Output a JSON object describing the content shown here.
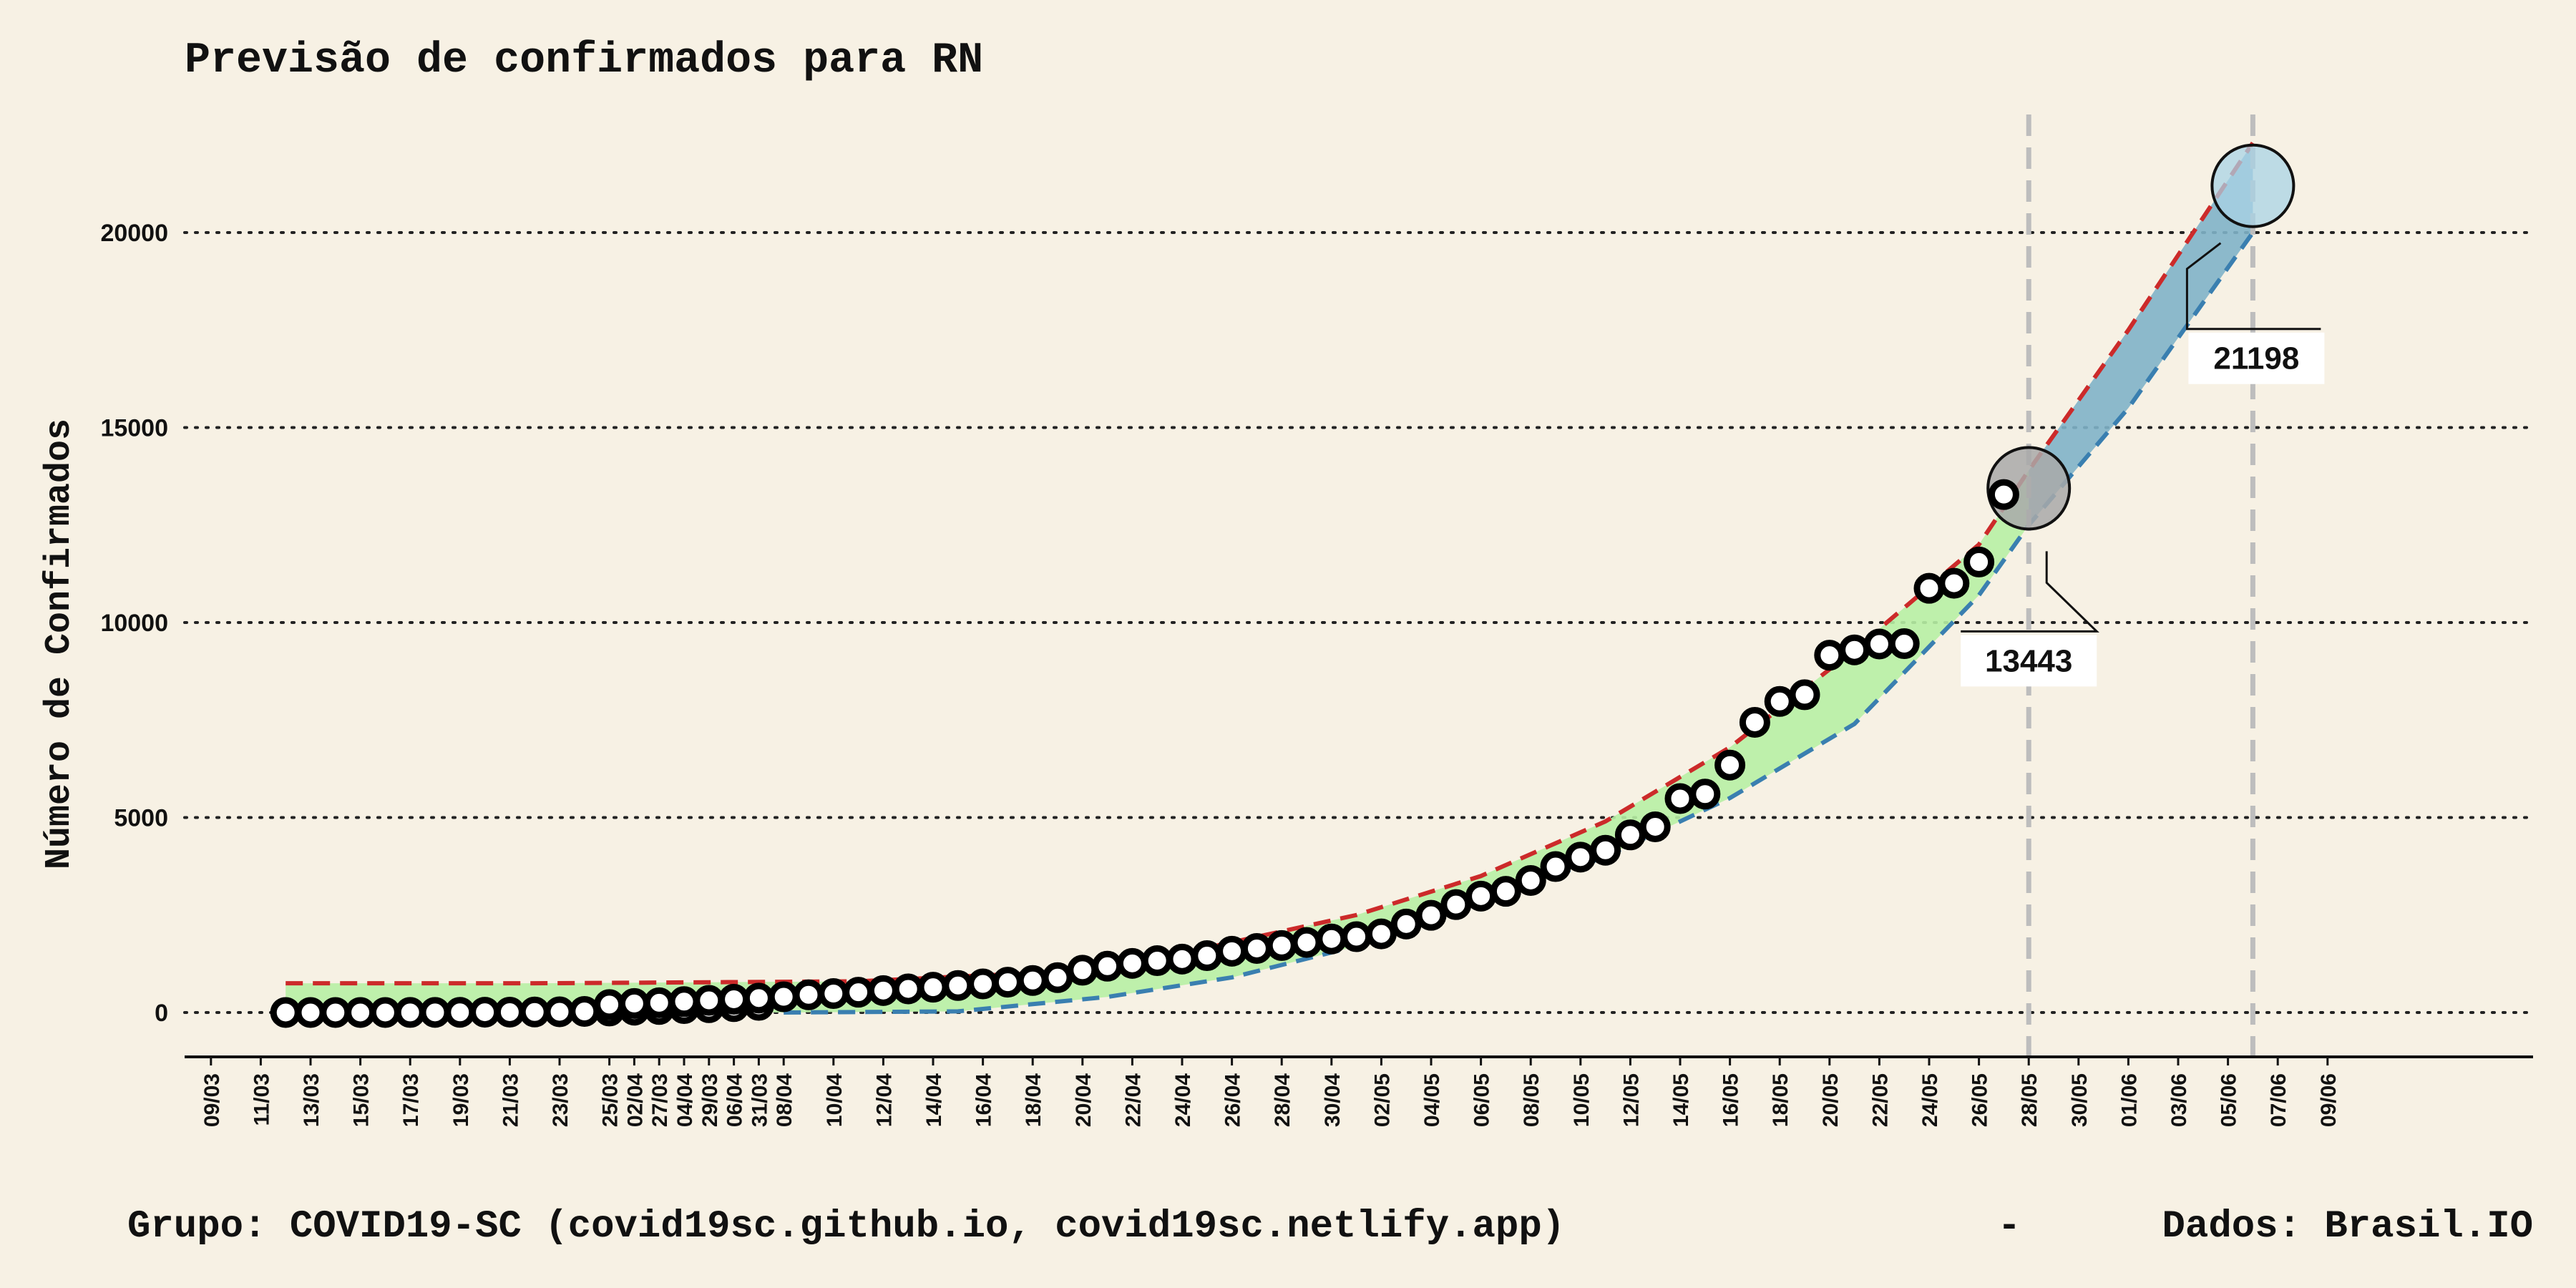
{
  "footer": {
    "group": "Grupo: COVID19-SC (covid19sc.github.io, covid19sc.netlify.app)",
    "sep": "-",
    "source": "Dados: Brasil.IO"
  },
  "colors": {
    "background": "#f7f1e4",
    "upper": "#cc2a2a",
    "lower": "#3a7fb0",
    "band_fit": "#b7efa4",
    "band_forecast": "#7fb3c8",
    "marker_today": "#a9a9a9",
    "marker_forecast": "#a9d3e6",
    "vline": "#bdbdbd"
  },
  "chart_data": {
    "type": "line",
    "title": "Previsão de confirmados para RN",
    "xlabel": "",
    "ylabel": "Número de Confirmados",
    "x_ticks": [
      "09/03",
      "11/03",
      "13/03",
      "15/03",
      "17/03",
      "19/03",
      "21/03",
      "23/03",
      "25/03",
      "27/03",
      "29/03",
      "31/03",
      "02/04",
      "04/04",
      "06/04",
      "08/04",
      "10/04",
      "12/04",
      "14/04",
      "16/04",
      "18/04",
      "20/04",
      "22/04",
      "24/04",
      "26/04",
      "28/04",
      "30/04",
      "02/05",
      "04/05",
      "06/05",
      "08/05",
      "10/05",
      "12/05",
      "14/05",
      "16/05",
      "18/05",
      "20/05",
      "22/05",
      "24/05",
      "26/05",
      "28/05",
      "30/05",
      "01/06",
      "03/06",
      "05/06",
      "07/06",
      "09/06"
    ],
    "y_ticks": [
      0,
      5000,
      10000,
      15000,
      20000
    ],
    "ylim": [
      -1100,
      22500
    ],
    "x_range": [
      "08/03",
      "10/06"
    ],
    "grid": "horizontal dotted",
    "series": [
      {
        "kind": "observed",
        "dates": [
          "12/03",
          "13/03",
          "14/03",
          "15/03",
          "16/03",
          "17/03",
          "18/03",
          "19/03",
          "20/03",
          "21/03",
          "22/03",
          "23/03",
          "24/03",
          "25/03",
          "26/03",
          "27/03",
          "28/03",
          "29/03",
          "30/03",
          "31/03",
          "01/04",
          "02/04",
          "03/04",
          "04/04",
          "05/04",
          "06/04",
          "07/04",
          "08/04",
          "09/04",
          "10/04",
          "11/04",
          "12/04",
          "13/04",
          "14/04",
          "15/04",
          "16/04",
          "17/04",
          "18/04",
          "19/04",
          "20/04",
          "21/04",
          "22/04",
          "23/04",
          "24/04",
          "25/04",
          "26/04",
          "27/04",
          "28/04",
          "29/04",
          "30/04",
          "01/05",
          "02/05",
          "03/05",
          "04/05",
          "05/05",
          "06/05",
          "07/05",
          "08/05",
          "09/05",
          "10/05",
          "11/05",
          "12/05",
          "13/05",
          "14/05",
          "15/05",
          "16/05",
          "17/05",
          "18/05",
          "19/05",
          "20/05",
          "21/05",
          "22/05",
          "23/05",
          "24/05",
          "25/05",
          "26/05",
          "27/05"
        ],
        "values": [
          1,
          1,
          1,
          1,
          1,
          2,
          3,
          5,
          8,
          10,
          13,
          19,
          28,
          38,
          60,
          77,
          100,
          124,
          151,
          183,
          204,
          231,
          250,
          279,
          311,
          340,
          370,
          403,
          454,
          486,
          520,
          563,
          606,
          648,
          692,
          733,
          778,
          820,
          894,
          1085,
          1187,
          1260,
          1330,
          1370,
          1458,
          1572,
          1643,
          1718,
          1797,
          1886,
          1944,
          2017,
          2269,
          2492,
          2768,
          2985,
          3108,
          3386,
          3742,
          3985,
          4161,
          4554,
          4762,
          5487,
          5601,
          6345,
          7441,
          7976,
          8149,
          9162,
          9299,
          9450,
          9458,
          10878,
          11008,
          11553,
          13282
        ]
      },
      {
        "kind": "upper-fit",
        "dates": [
          "12/03",
          "22/03",
          "01/04",
          "11/04",
          "21/04",
          "01/05",
          "06/05",
          "11/05",
          "16/05",
          "21/05",
          "26/05",
          "28/05",
          "01/06",
          "06/06"
        ],
        "values": [
          750,
          750,
          760,
          800,
          1100,
          2500,
          3500,
          4900,
          6800,
          9300,
          12000,
          13900,
          17500,
          22300
        ]
      },
      {
        "kind": "lower-fit",
        "dates": [
          "08/04",
          "15/04",
          "21/04",
          "26/04",
          "01/05",
          "06/05",
          "11/05",
          "16/05",
          "21/05",
          "26/05",
          "28/05",
          "01/06",
          "06/06"
        ],
        "values": [
          0,
          30,
          400,
          900,
          1700,
          2800,
          4000,
          5500,
          7400,
          10700,
          12500,
          15500,
          20000
        ]
      }
    ],
    "annotations": [
      {
        "label": "13443",
        "date": "28/05",
        "value": 13443
      },
      {
        "label": "21198",
        "date": "06/06",
        "value": 21198
      }
    ],
    "vlines": [
      "28/05",
      "06/06"
    ]
  }
}
